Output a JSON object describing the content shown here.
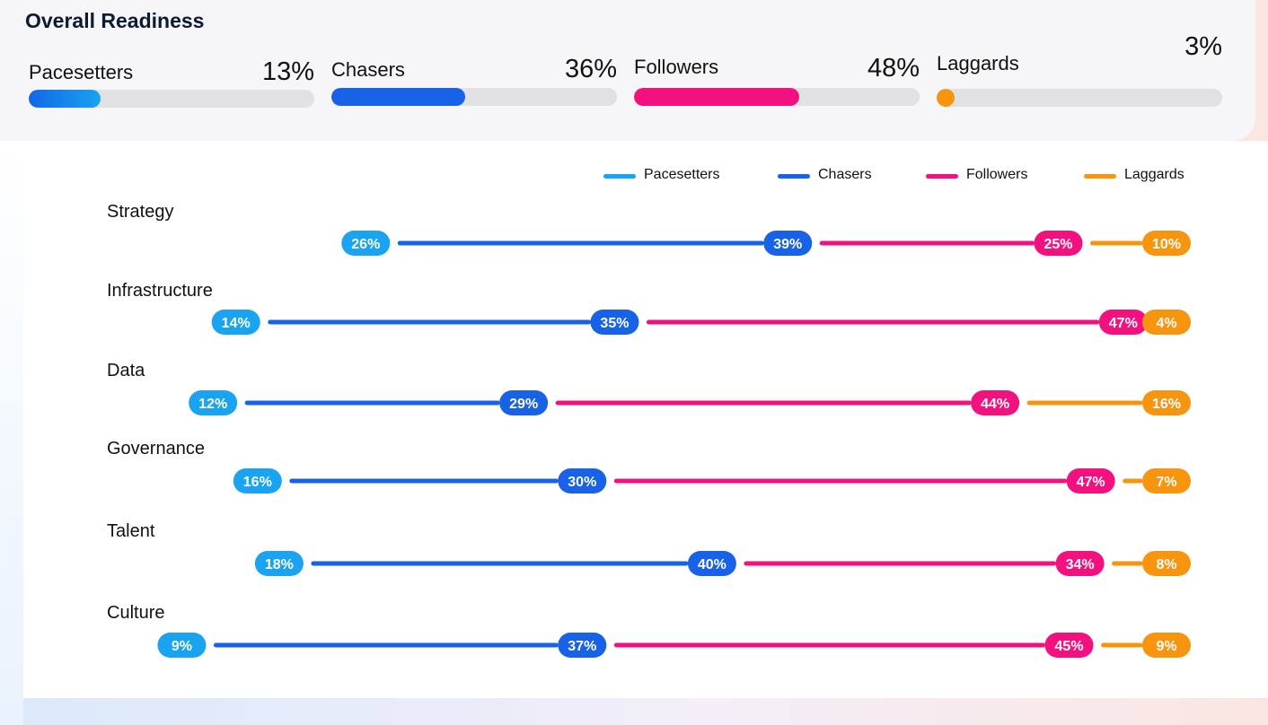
{
  "title": "Overall Readiness",
  "overall": [
    {
      "label": "Pacesetters",
      "value_text": "13%",
      "value": 13,
      "fill": 0.25
    },
    {
      "label": "Chasers",
      "value_text": "36%",
      "value": 36,
      "fill": 0.47
    },
    {
      "label": "Followers",
      "value_text": "48%",
      "value": 48,
      "fill": 0.58
    },
    {
      "label": "Laggards",
      "value_text": "3%",
      "value": 3,
      "fill": 0.06
    }
  ],
  "colors": {
    "pacesetters": "#1aa3f0",
    "pacesetters_start": "#1167e8",
    "chasers": "#1762e6",
    "followers": "#f2117f",
    "laggards": "#f7950f"
  },
  "chart_data": {
    "type": "bar",
    "stacked": true,
    "legend": [
      "Pacesetters",
      "Chasers",
      "Followers",
      "Laggards"
    ],
    "legend_position": "top-right",
    "categories": [
      "Strategy",
      "Infrastructure",
      "Data",
      "Governance",
      "Talent",
      "Culture"
    ],
    "series": [
      {
        "name": "Pacesetters",
        "values": [
          26,
          14,
          12,
          16,
          18,
          9
        ]
      },
      {
        "name": "Chasers",
        "values": [
          39,
          35,
          29,
          30,
          40,
          37
        ]
      },
      {
        "name": "Followers",
        "values": [
          25,
          47,
          44,
          47,
          34,
          45
        ]
      },
      {
        "name": "Laggards",
        "values": [
          10,
          4,
          16,
          7,
          8,
          9
        ]
      }
    ]
  }
}
